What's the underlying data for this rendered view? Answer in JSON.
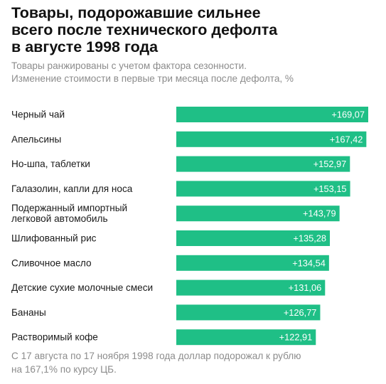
{
  "title": "Товары, подорожавшие сильнее\nвсего после технического дефолта\nв августе 1998 года",
  "subtitle": "Товары ранжированы с учетом фактора сезонности.\nИзменение стоимости в первые три месяца после дефолта, %",
  "footnote": "С 17 августа по 17 ноября 1998 года доллар подорожал к рублю\nна 167,1% по курсу ЦБ.",
  "colors": {
    "bar": "#1fbf86",
    "label_text": "#1a1a1a",
    "value_text": "#ffffff"
  },
  "chart_data": {
    "type": "bar",
    "orientation": "horizontal",
    "categories": [
      "Черный чай",
      "Апельсины",
      "Но-шпа, таблетки",
      "Галазолин, капли для носа",
      "Подержанный импортный\nлегковой автомобиль",
      "Шлифованный рис",
      "Сливочное масло",
      "Детские сухие молочные смеси",
      "Бананы",
      "Растворимый кофе"
    ],
    "values": [
      169.07,
      167.42,
      152.97,
      153.15,
      143.79,
      135.28,
      134.54,
      131.06,
      126.77,
      122.91
    ],
    "value_labels": [
      "+169,07",
      "+167,42",
      "+152,97",
      "+153,15",
      "+143,79",
      "+135,28",
      "+134,54",
      "+131,06",
      "+126,77",
      "+122,91"
    ],
    "xlim": [
      0,
      169.07
    ],
    "grid": false,
    "legend": "none"
  }
}
